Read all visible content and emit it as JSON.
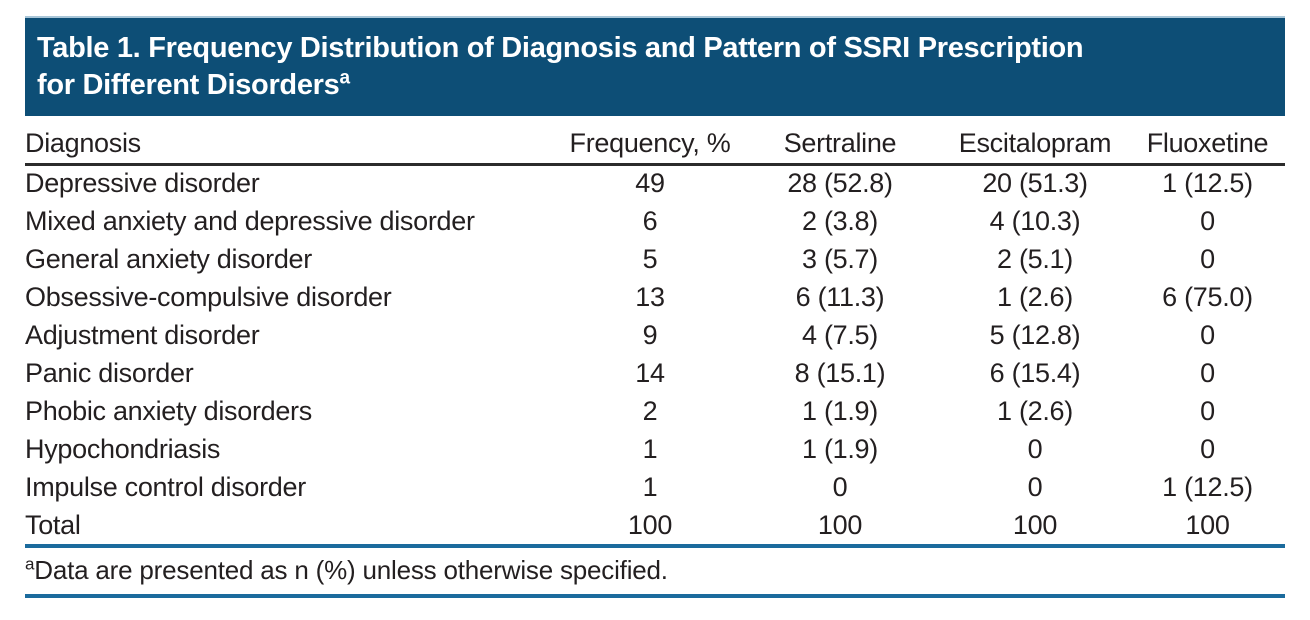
{
  "title": {
    "line1": "Table 1. Frequency Distribution of Diagnosis and Pattern of SSRI Prescription",
    "line2": "for Different Disorders",
    "footnote_marker": "a"
  },
  "colors": {
    "title_bg": "#0d4e76",
    "title_top_edge": "#a9c6d8",
    "title_text": "#ffffff",
    "rule_blue": "#1b6b9d",
    "rule_dark": "#2b2b2b",
    "text": "#231f20",
    "page_bg": "#ffffff"
  },
  "table": {
    "columns": [
      "Diagnosis",
      "Frequency, %",
      "Sertraline",
      "Escitalopram",
      "Fluoxetine"
    ],
    "rows": [
      {
        "diagnosis": "Depressive disorder",
        "frequency": "49",
        "sertraline": "28 (52.8)",
        "escitalopram": "20 (51.3)",
        "fluoxetine": "1 (12.5)"
      },
      {
        "diagnosis": "Mixed anxiety and depressive disorder",
        "frequency": "6",
        "sertraline": "2 (3.8)",
        "escitalopram": "4 (10.3)",
        "fluoxetine": "0"
      },
      {
        "diagnosis": "General anxiety disorder",
        "frequency": "5",
        "sertraline": "3 (5.7)",
        "escitalopram": "2 (5.1)",
        "fluoxetine": "0"
      },
      {
        "diagnosis": "Obsessive-compulsive disorder",
        "frequency": "13",
        "sertraline": "6 (11.3)",
        "escitalopram": "1 (2.6)",
        "fluoxetine": "6 (75.0)"
      },
      {
        "diagnosis": "Adjustment disorder",
        "frequency": "9",
        "sertraline": "4 (7.5)",
        "escitalopram": "5 (12.8)",
        "fluoxetine": "0"
      },
      {
        "diagnosis": "Panic disorder",
        "frequency": "14",
        "sertraline": "8 (15.1)",
        "escitalopram": "6 (15.4)",
        "fluoxetine": "0"
      },
      {
        "diagnosis": "Phobic anxiety disorders",
        "frequency": "2",
        "sertraline": "1 (1.9)",
        "escitalopram": "1 (2.6)",
        "fluoxetine": "0"
      },
      {
        "diagnosis": "Hypochondriasis",
        "frequency": "1",
        "sertraline": "1 (1.9)",
        "escitalopram": "0",
        "fluoxetine": "0"
      },
      {
        "diagnosis": "Impulse control disorder",
        "frequency": "1",
        "sertraline": "0",
        "escitalopram": "0",
        "fluoxetine": "1 (12.5)"
      },
      {
        "diagnosis": "Total",
        "frequency": "100",
        "sertraline": "100",
        "escitalopram": "100",
        "fluoxetine": "100"
      }
    ]
  },
  "footnote": {
    "marker": "a",
    "text": "Data are presented as n (%) unless otherwise specified."
  }
}
